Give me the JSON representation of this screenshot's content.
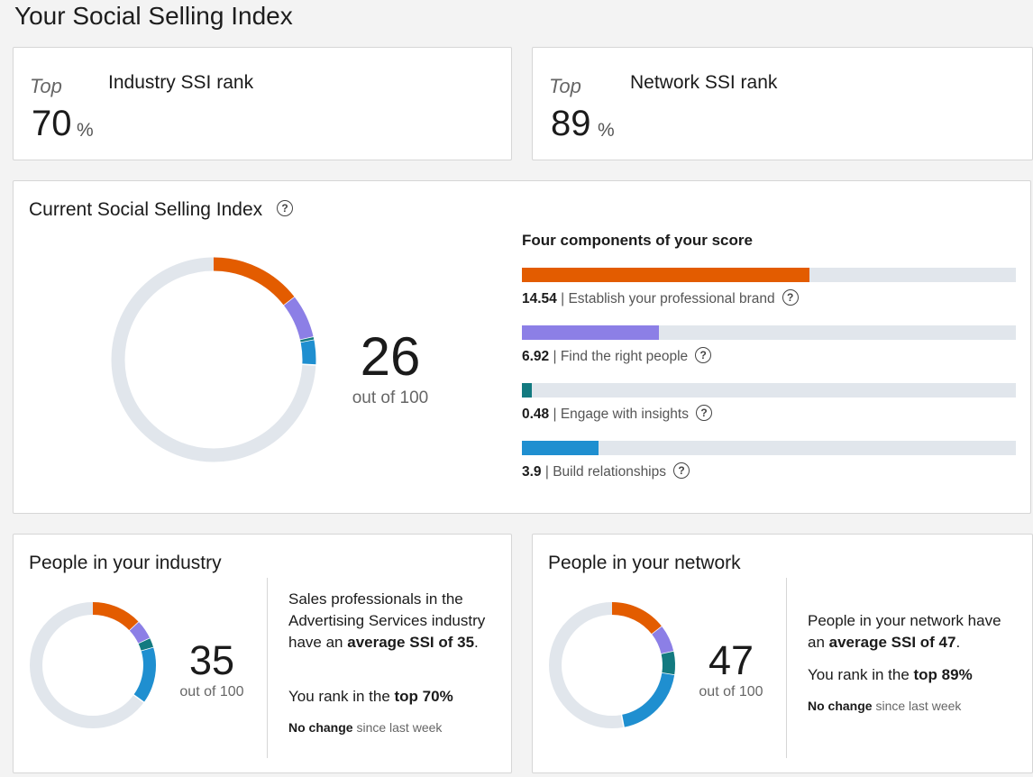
{
  "page": {
    "title": "Your Social Selling Index"
  },
  "industry_rank": {
    "top_word": "Top",
    "value": "70",
    "pct": "%",
    "label": "Industry SSI rank"
  },
  "network_rank": {
    "top_word": "Top",
    "value": "89",
    "pct": "%",
    "label": "Network SSI rank"
  },
  "current": {
    "heading": "Current Social Selling Index",
    "score": "26",
    "out_of": "out of 100",
    "components_title": "Four components of your score",
    "components": [
      {
        "score": "14.54",
        "label": "Establish your professional brand",
        "fraction": 0.5816,
        "color": "#e35c00"
      },
      {
        "score": "6.92",
        "label": "Find the right people",
        "fraction": 0.2768,
        "color": "#8c7fe6"
      },
      {
        "score": "0.48",
        "label": "Engage with insights",
        "fraction": 0.0192,
        "color": "#137a80"
      },
      {
        "score": "3.9",
        "label": "Build relationships",
        "fraction": 0.156,
        "color": "#1f8fd0"
      }
    ]
  },
  "industry_people": {
    "heading": "People in your industry",
    "score": "35",
    "out_of": "out of 100",
    "desc_pre": "Sales professionals in the Advertising Services industry have an ",
    "desc_bold": "average SSI of 35",
    "desc_post": ".",
    "rank_pre": "You rank in the ",
    "rank_bold": "top 70%",
    "change_bold": "No change",
    "change_rest": " since last week",
    "components": [
      13.0,
      5.0,
      2.5,
      14.5
    ]
  },
  "network_people": {
    "heading": "People in your network",
    "score": "47",
    "out_of": "out of 100",
    "desc_pre": "People in your network have an ",
    "desc_bold": "average SSI of 47",
    "desc_post": ".",
    "rank_pre": "You rank in the ",
    "rank_bold": "top 89%",
    "change_bold": "No change",
    "change_rest": " since last week",
    "components": [
      14.5,
      7.0,
      6.0,
      19.5
    ]
  },
  "colors": {
    "brand": "#e35c00",
    "people": "#8c7fe6",
    "insights": "#137a80",
    "relationships": "#1f8fd0",
    "track": "#e1e6ec"
  },
  "icons": {
    "help": "help-circle-icon"
  }
}
